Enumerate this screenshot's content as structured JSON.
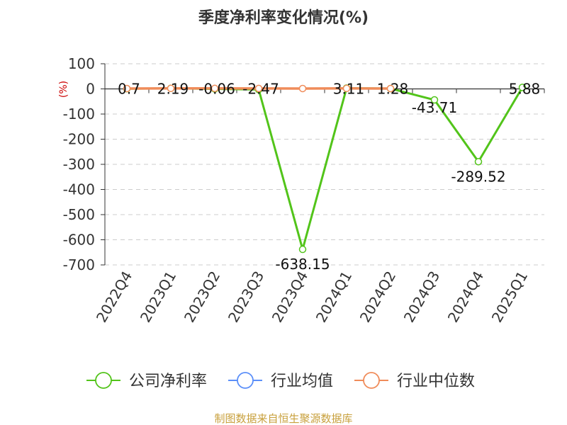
{
  "chart_data": {
    "type": "line",
    "title": "季度净利率变化情况(%)",
    "ylabel": "(%)",
    "categories": [
      "2022Q4",
      "2023Q1",
      "2023Q2",
      "2023Q3",
      "2023Q4",
      "2024Q1",
      "2024Q2",
      "2024Q3",
      "2024Q4",
      "2025Q1"
    ],
    "ylim": [
      -700,
      100
    ],
    "yticks": [
      100,
      0,
      -100,
      -200,
      -300,
      -400,
      -500,
      -600,
      -700
    ],
    "grid": true,
    "legend_position": "bottom",
    "series": [
      {
        "name": "公司净利率",
        "color": "#52c41a",
        "values": [
          0.7,
          2.19,
          -0.06,
          -2.47,
          -638.15,
          3.11,
          1.28,
          -43.71,
          -289.52,
          5.88
        ],
        "labels": [
          "0.7",
          "2.19",
          "-0.06",
          "-2.47",
          "-638.15",
          "3.11",
          "1.28",
          "-43.71",
          "-289.52",
          "5.88"
        ]
      },
      {
        "name": "行业均值",
        "color": "#5b8ff9",
        "values": [
          null,
          null,
          null,
          null,
          null,
          null,
          null,
          null,
          null,
          null
        ]
      },
      {
        "name": "行业中位数",
        "color": "#f08c5a",
        "values": [
          1.5,
          2,
          2,
          1.8,
          1.5,
          2,
          1.5,
          null,
          null,
          null
        ]
      }
    ],
    "source": "制图数据来自恒生聚源数据库"
  }
}
